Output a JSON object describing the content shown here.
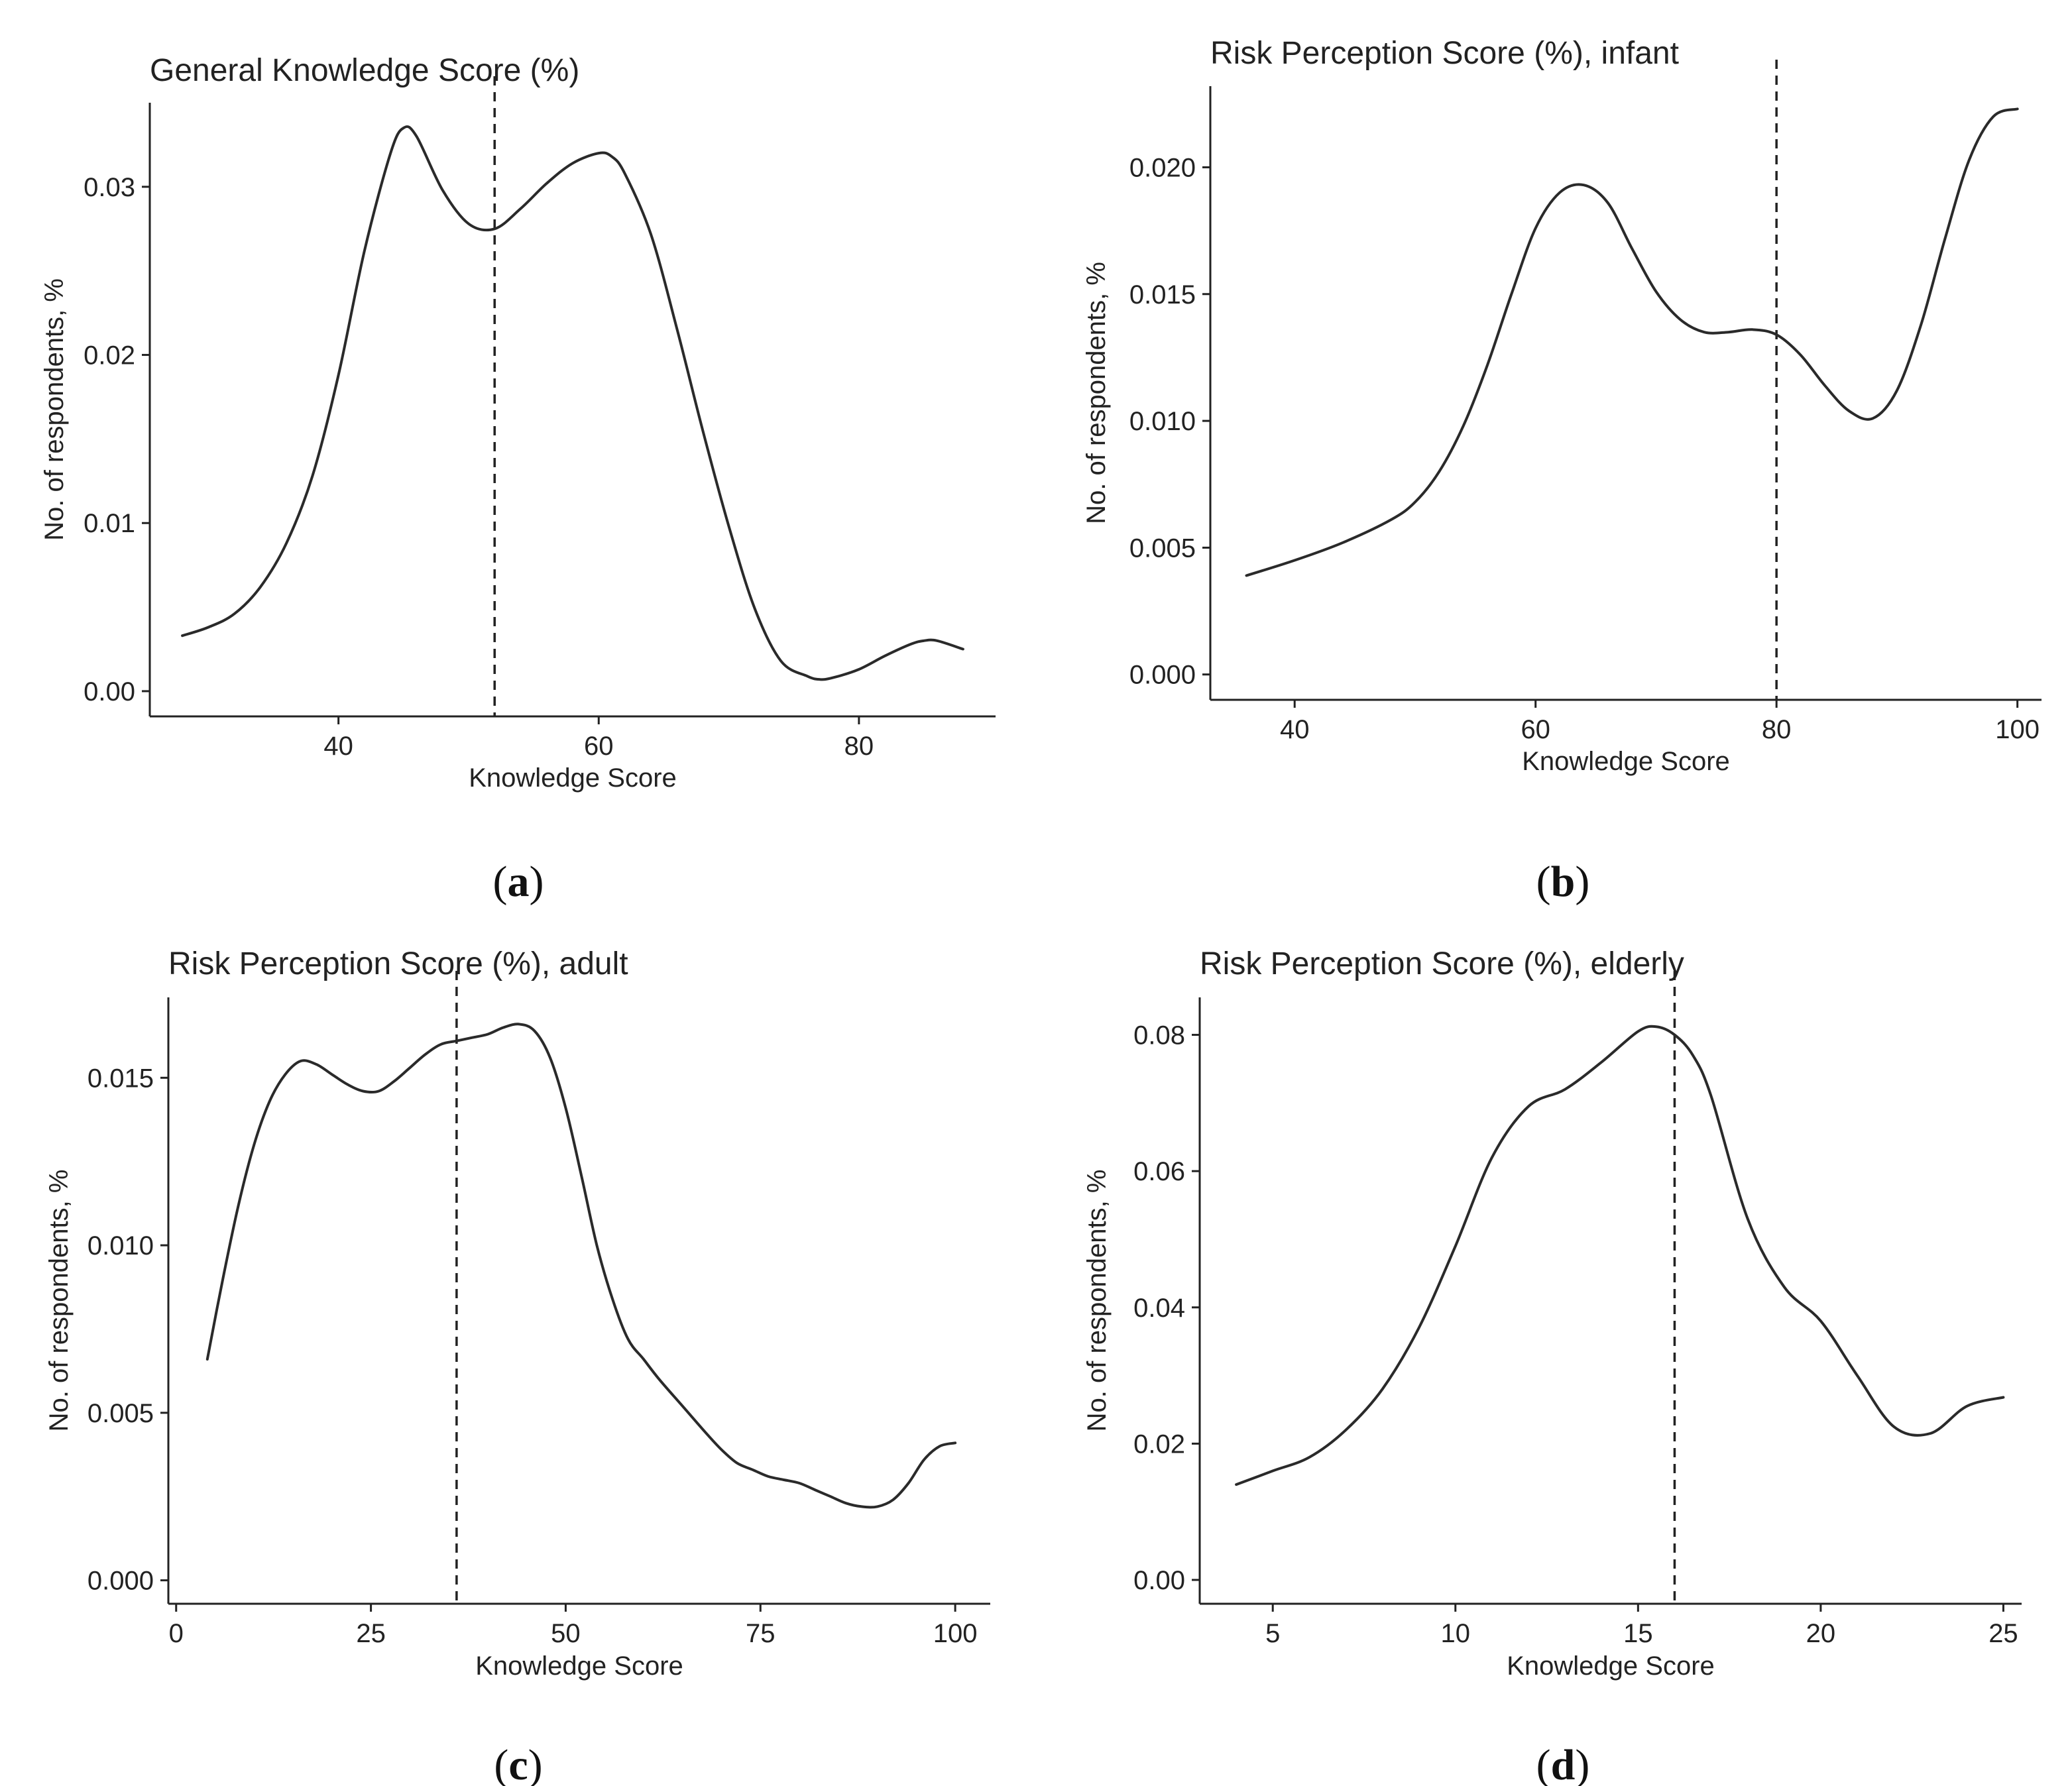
{
  "chart_data": [
    {
      "id": "a",
      "type": "line",
      "title": "General Knowledge Score (%)",
      "xlabel": "Knowledge Score",
      "ylabel": "No. of respondents, %",
      "caption": "a",
      "xlim": [
        25.5,
        90.5
      ],
      "ylim": [
        -0.0015,
        0.035
      ],
      "xticks": [
        40,
        60,
        80
      ],
      "yticks": [
        0.0,
        0.01,
        0.02,
        0.03
      ],
      "ytick_labels": [
        "0.00",
        "0.01",
        "0.02",
        "0.03"
      ],
      "vline": 52,
      "x": [
        28,
        30,
        32,
        34,
        36,
        38,
        40,
        42,
        44,
        45,
        46,
        48,
        50,
        52,
        54,
        56,
        58,
        60,
        61,
        62,
        64,
        66,
        68,
        70,
        72,
        74,
        76,
        77,
        78,
        80,
        82,
        84,
        85,
        86,
        88
      ],
      "y": [
        0.0033,
        0.0038,
        0.0046,
        0.0062,
        0.0088,
        0.0128,
        0.0188,
        0.0262,
        0.032,
        0.0335,
        0.033,
        0.0298,
        0.0278,
        0.0275,
        0.0287,
        0.0302,
        0.0314,
        0.032,
        0.0318,
        0.0308,
        0.0272,
        0.0216,
        0.0155,
        0.0098,
        0.0049,
        0.0018,
        0.0009,
        0.0007,
        0.0008,
        0.0013,
        0.0021,
        0.0028,
        0.003,
        0.003,
        0.0025
      ]
    },
    {
      "id": "b",
      "type": "line",
      "title": "Risk Perception Score (%), infant",
      "xlabel": "Knowledge Score",
      "ylabel": "No. of respondents, %",
      "caption": "b",
      "xlim": [
        33,
        102
      ],
      "ylim": [
        -0.001,
        0.0232
      ],
      "xticks": [
        40,
        60,
        80,
        100
      ],
      "yticks": [
        0.0,
        0.005,
        0.01,
        0.015,
        0.02
      ],
      "ytick_labels": [
        "0.000",
        "0.005",
        "0.010",
        "0.015",
        "0.020"
      ],
      "vline": 80,
      "x": [
        36,
        40,
        44,
        48,
        50,
        52,
        54,
        56,
        58,
        60,
        62,
        64,
        66,
        68,
        70,
        72,
        74,
        76,
        78,
        80,
        82,
        84,
        86,
        88,
        90,
        92,
        94,
        96,
        98,
        100
      ],
      "y": [
        0.0039,
        0.0045,
        0.0052,
        0.0061,
        0.0068,
        0.008,
        0.0098,
        0.0122,
        0.015,
        0.0176,
        0.019,
        0.0193,
        0.0186,
        0.0168,
        0.0151,
        0.014,
        0.0135,
        0.0135,
        0.0136,
        0.0134,
        0.0126,
        0.0114,
        0.0104,
        0.0101,
        0.0112,
        0.0138,
        0.0172,
        0.0203,
        0.022,
        0.0223
      ]
    },
    {
      "id": "c",
      "type": "line",
      "title": "Risk Perception Score (%), adult",
      "xlabel": "Knowledge Score",
      "ylabel": "No. of respondents, %",
      "caption": "c",
      "xlim": [
        -1,
        104.5
      ],
      "ylim": [
        -0.0007,
        0.0174
      ],
      "xticks": [
        0,
        25,
        50,
        75,
        100
      ],
      "yticks": [
        0.0,
        0.005,
        0.01,
        0.015
      ],
      "ytick_labels": [
        "0.000",
        "0.005",
        "0.010",
        "0.015"
      ],
      "vline": 36,
      "x": [
        4,
        6,
        8,
        10,
        12,
        14,
        16,
        18,
        20,
        22,
        24,
        26,
        28,
        30,
        32,
        34,
        36,
        38,
        40,
        42,
        44,
        46,
        48,
        50,
        52,
        54,
        56,
        58,
        60,
        62,
        65,
        68,
        70,
        72,
        74,
        76,
        78,
        80,
        82,
        84,
        86,
        88,
        90,
        92,
        94,
        96,
        98,
        100
      ],
      "y": [
        0.0066,
        0.009,
        0.0112,
        0.013,
        0.0143,
        0.0151,
        0.0155,
        0.0154,
        0.0151,
        0.0148,
        0.0146,
        0.0146,
        0.0149,
        0.0153,
        0.0157,
        0.016,
        0.0161,
        0.0162,
        0.0163,
        0.0165,
        0.0166,
        0.0164,
        0.0156,
        0.0141,
        0.0121,
        0.01,
        0.0084,
        0.0072,
        0.0066,
        0.006,
        0.0052,
        0.0044,
        0.0039,
        0.0035,
        0.0033,
        0.0031,
        0.003,
        0.0029,
        0.0027,
        0.0025,
        0.0023,
        0.0022,
        0.0022,
        0.0024,
        0.0029,
        0.0036,
        0.004,
        0.0041
      ]
    },
    {
      "id": "d",
      "type": "line",
      "title": "Risk Perception Score (%), elderly",
      "xlabel": "Knowledge Score",
      "ylabel": "No. of respondents, %",
      "caption": "d",
      "xlim": [
        3,
        25.5
      ],
      "ylim": [
        -0.0035,
        0.0855
      ],
      "xticks": [
        5,
        10,
        15,
        20,
        25
      ],
      "yticks": [
        0.0,
        0.02,
        0.04,
        0.06,
        0.08
      ],
      "ytick_labels": [
        "0.00",
        "0.02",
        "0.04",
        "0.06",
        "0.08"
      ],
      "vline": 16,
      "x": [
        4,
        5,
        6,
        7,
        8,
        9,
        10,
        11,
        12,
        13,
        14,
        15,
        15.5,
        16,
        16.5,
        17,
        18,
        19,
        20,
        21,
        22,
        23,
        24,
        25
      ],
      "y": [
        0.014,
        0.016,
        0.018,
        0.022,
        0.028,
        0.037,
        0.049,
        0.062,
        0.0695,
        0.072,
        0.076,
        0.0805,
        0.0812,
        0.08,
        0.077,
        0.071,
        0.053,
        0.043,
        0.038,
        0.03,
        0.0225,
        0.0215,
        0.0255,
        0.0268
      ]
    }
  ]
}
